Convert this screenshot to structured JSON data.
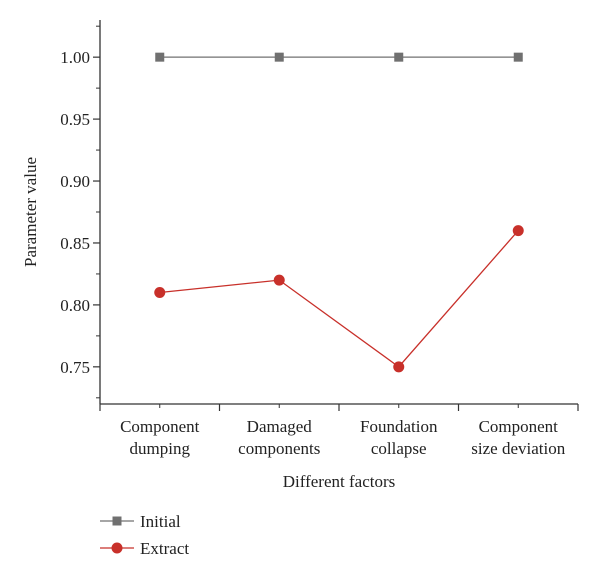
{
  "chart_data": {
    "type": "line",
    "title": "",
    "xlabel": "Different factors",
    "ylabel": "Parameter value",
    "categories": [
      [
        "Component",
        "dumping"
      ],
      [
        "Damaged",
        "components"
      ],
      [
        "Foundation",
        "collapse"
      ],
      [
        "Component",
        "size deviation"
      ]
    ],
    "ylim": [
      0.72,
      1.03
    ],
    "yticks": [
      "0.75",
      "0.80",
      "0.85",
      "0.90",
      "0.95",
      "1.00"
    ],
    "grid": false,
    "legend_position": "bottom-left",
    "series": [
      {
        "name": "Initial",
        "values": [
          1.0,
          1.0,
          1.0,
          1.0
        ],
        "color": "#707070",
        "marker": "square"
      },
      {
        "name": "Extract",
        "values": [
          0.81,
          0.82,
          0.75,
          0.86
        ],
        "color": "#c8302a",
        "marker": "circle"
      }
    ]
  }
}
